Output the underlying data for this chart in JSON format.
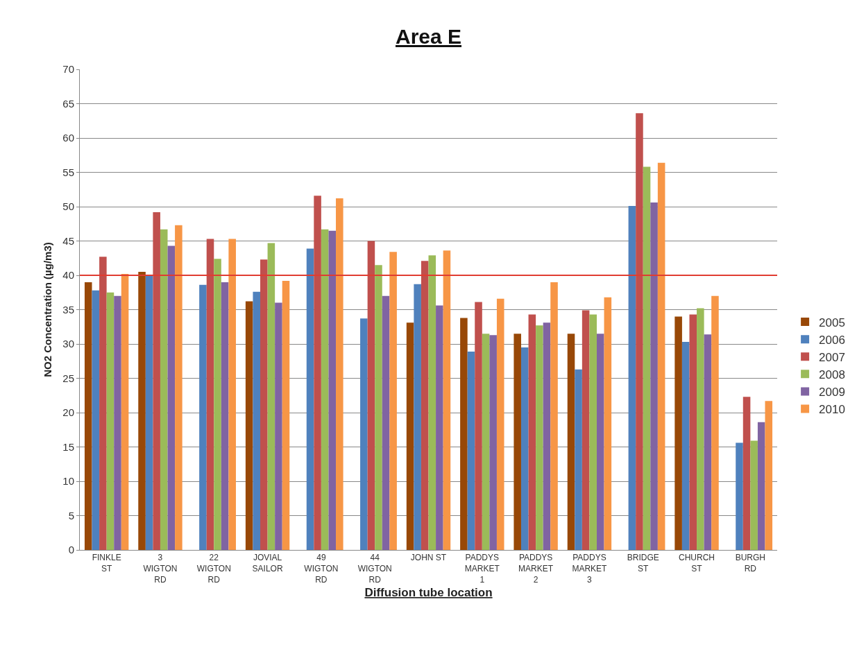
{
  "chart_data": {
    "type": "bar",
    "title": "Area E",
    "xlabel": "Diffusion tube location",
    "ylabel": "NO2 Concentration (µg/m3)",
    "categories": [
      "FINKLE ST",
      "3 WIGTON RD",
      "22 WIGTON RD",
      "JOVIAL SAILOR",
      "49 WIGTON RD",
      "44 WIGTON RD",
      "JOHN ST",
      "PADDYS MARKET 1",
      "PADDYS MARKET 2",
      "PADDYS MARKET 3",
      "BRIDGE ST",
      "CHURCH ST",
      "BURGH RD"
    ],
    "series": [
      {
        "name": "2005",
        "color": "#984807",
        "values": [
          39.0,
          40.5,
          null,
          36.2,
          null,
          null,
          33.1,
          33.8,
          31.5,
          31.5,
          null,
          34.0,
          null
        ]
      },
      {
        "name": "2006",
        "color": "#4f81bd",
        "values": [
          37.8,
          40.0,
          38.6,
          37.6,
          43.9,
          33.7,
          38.7,
          28.9,
          29.5,
          26.3,
          50.1,
          30.3,
          15.6
        ]
      },
      {
        "name": "2007",
        "color": "#c0504d",
        "values": [
          42.7,
          49.2,
          45.3,
          42.3,
          51.6,
          45.0,
          42.1,
          36.1,
          34.3,
          34.9,
          63.6,
          34.3,
          22.3
        ]
      },
      {
        "name": "2008",
        "color": "#9bbb59",
        "values": [
          37.5,
          46.7,
          42.4,
          44.7,
          46.7,
          41.5,
          42.9,
          31.5,
          32.7,
          34.3,
          55.8,
          35.2,
          15.9
        ]
      },
      {
        "name": "2009",
        "color": "#8064a2",
        "values": [
          37.0,
          44.3,
          39.0,
          36.0,
          46.5,
          37.0,
          35.6,
          31.3,
          33.1,
          31.5,
          50.6,
          31.4,
          18.6
        ]
      },
      {
        "name": "2010",
        "color": "#f79646",
        "values": [
          40.2,
          47.3,
          45.3,
          39.2,
          51.2,
          43.4,
          43.6,
          36.6,
          39.0,
          36.8,
          56.4,
          37.0,
          21.7
        ]
      }
    ],
    "ylim": [
      0,
      70
    ],
    "yticks": [
      0,
      5,
      10,
      15,
      20,
      25,
      30,
      35,
      40,
      45,
      50,
      55,
      60,
      65,
      70
    ],
    "ref_lines": [
      {
        "axis": "y",
        "value": 40,
        "color": "#e03c31"
      }
    ],
    "grid": "y",
    "legend": "right"
  }
}
